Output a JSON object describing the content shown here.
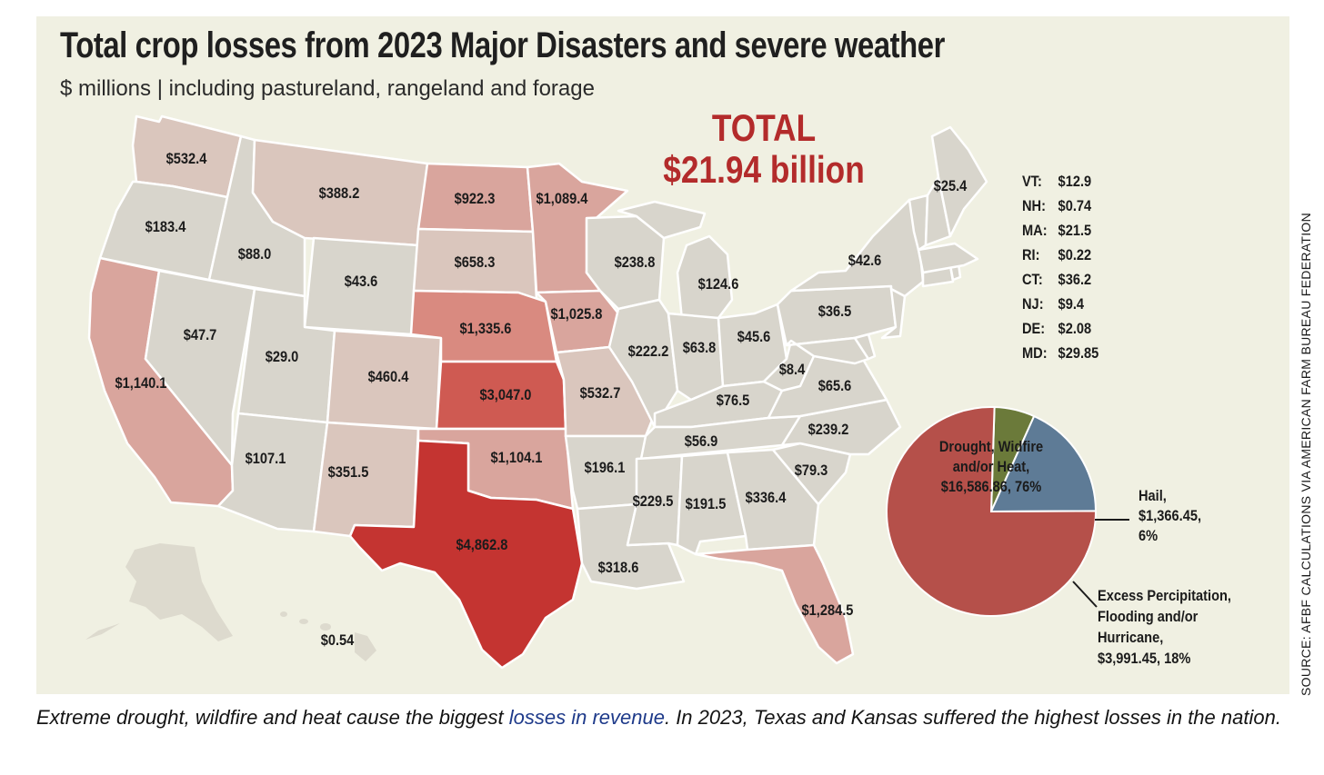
{
  "title": "Total crop losses from 2023 Major Disasters and severe weather",
  "subtitle": "$ millions | including pastureland, rangeland and forage",
  "total": {
    "label": "TOTAL",
    "value": "$21.94 billion"
  },
  "colors": {
    "panel": "#f0f0e2",
    "grey": "#d8d5cc",
    "tan": "#dac6bd",
    "pink": "#d9a59d",
    "mid": "#d98a80",
    "strong": "#cf5a52",
    "red": "#c43431",
    "pie_drought": "#b5504a",
    "pie_hail": "#6b7a3a",
    "pie_excess": "#5e7b96",
    "total_text": "#b32b2b"
  },
  "states": [
    {
      "id": "WA",
      "label": "$532.4"
    },
    {
      "id": "OR",
      "label": "$183.4"
    },
    {
      "id": "CA",
      "label": "$1,140.1"
    },
    {
      "id": "NV",
      "label": "$47.7"
    },
    {
      "id": "ID",
      "label": "$88.0"
    },
    {
      "id": "MT",
      "label": "$388.2"
    },
    {
      "id": "WY",
      "label": "$43.6"
    },
    {
      "id": "UT",
      "label": "$29.0"
    },
    {
      "id": "AZ",
      "label": "$107.1"
    },
    {
      "id": "CO",
      "label": "$460.4"
    },
    {
      "id": "NM",
      "label": "$351.5"
    },
    {
      "id": "ND",
      "label": "$922.3"
    },
    {
      "id": "SD",
      "label": "$658.3"
    },
    {
      "id": "NE",
      "label": "$1,335.6"
    },
    {
      "id": "KS",
      "label": "$3,047.0"
    },
    {
      "id": "OK",
      "label": "$1,104.1"
    },
    {
      "id": "TX",
      "label": "$4,862.8"
    },
    {
      "id": "MN",
      "label": "$1,089.4"
    },
    {
      "id": "IA",
      "label": "$1,025.8"
    },
    {
      "id": "MO",
      "label": "$532.7"
    },
    {
      "id": "AR",
      "label": "$196.1"
    },
    {
      "id": "LA",
      "label": "$318.6"
    },
    {
      "id": "WI",
      "label": "$238.8"
    },
    {
      "id": "IL",
      "label": "$222.2"
    },
    {
      "id": "MI",
      "label": "$124.6"
    },
    {
      "id": "IN",
      "label": "$63.8"
    },
    {
      "id": "OH",
      "label": "$45.6"
    },
    {
      "id": "KY",
      "label": "$76.5"
    },
    {
      "id": "TN",
      "label": "$56.9"
    },
    {
      "id": "MS",
      "label": "$229.5"
    },
    {
      "id": "AL",
      "label": "$191.5"
    },
    {
      "id": "GA",
      "label": "$336.4"
    },
    {
      "id": "FL",
      "label": "$1,284.5"
    },
    {
      "id": "SC",
      "label": "$79.3"
    },
    {
      "id": "NC",
      "label": "$239.2"
    },
    {
      "id": "VA",
      "label": "$65.6"
    },
    {
      "id": "WV",
      "label": "$8.4"
    },
    {
      "id": "PA",
      "label": "$36.5"
    },
    {
      "id": "NY",
      "label": "$42.6"
    },
    {
      "id": "ME",
      "label": "$25.4"
    },
    {
      "id": "HI",
      "label": "$0.54"
    }
  ],
  "small_states": [
    {
      "abbr": "VT:",
      "value": "$12.9"
    },
    {
      "abbr": "NH:",
      "value": "$0.74"
    },
    {
      "abbr": "MA:",
      "value": "$21.5"
    },
    {
      "abbr": "RI:",
      "value": "$0.22"
    },
    {
      "abbr": "CT:",
      "value": "$36.2"
    },
    {
      "abbr": "NJ:",
      "value": "$9.4"
    },
    {
      "abbr": "DE:",
      "value": "$2.08"
    },
    {
      "abbr": "MD:",
      "value": "$29.85"
    }
  ],
  "chart_data": {
    "type": "pie",
    "slices": [
      {
        "label": [
          "Drought, Widfire",
          "and/or Heat,",
          "$16,586.86, 76%"
        ],
        "value": 16586.86,
        "percent": 76,
        "color": "#b5504a"
      },
      {
        "label": [
          "Hail,",
          "$1,366.45,",
          "6%"
        ],
        "value": 1366.45,
        "percent": 6,
        "color": "#6b7a3a"
      },
      {
        "label": [
          "Excess Percipitation,",
          "Flooding and/or",
          "Hurricane,",
          "$3,991.45, 18%"
        ],
        "value": 3991.45,
        "percent": 18,
        "color": "#5e7b96"
      }
    ]
  },
  "source": "SOURCE: AFBF CALCULATIONS VIA AMERICAN FARM BUREAU FEDERATION",
  "caption": {
    "before": "Extreme drought, wildfire and heat cause the biggest ",
    "link": "losses in revenue",
    "after": ". In 2023, Texas and Kansas suffered the highest losses in the nation."
  }
}
